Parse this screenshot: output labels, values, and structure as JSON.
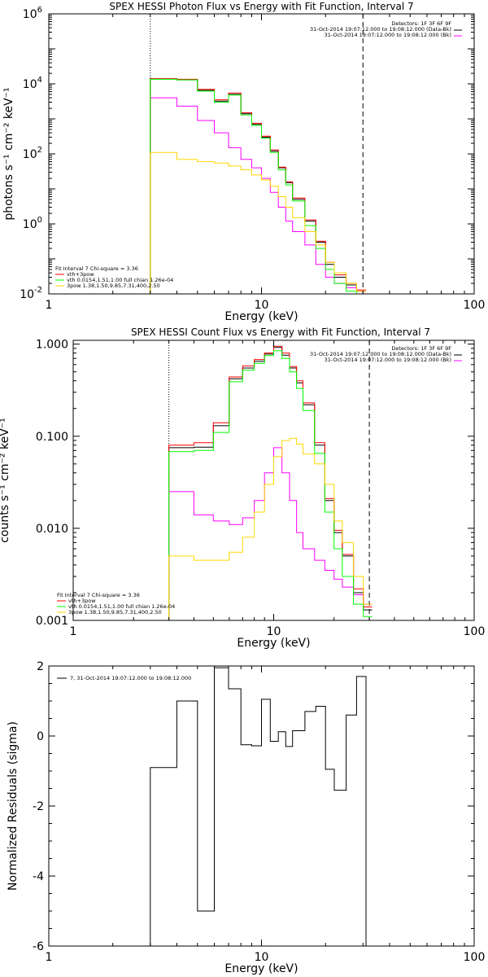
{
  "chart_data": [
    {
      "type": "line",
      "title": "SPEX HESSI Photon Flux vs Energy with Fit Function, Interval 7",
      "xlabel": "Energy (keV)",
      "ylabel": "photons s⁻¹ cm⁻² keV⁻¹",
      "x_scale": "log",
      "y_scale": "log",
      "xlim": [
        1,
        100
      ],
      "ylim": [
        0.01,
        1000000
      ],
      "x_ticks": [
        "1",
        "10",
        "100"
      ],
      "y_ticks": [
        "10",
        "10",
        "10",
        "10",
        "10"
      ],
      "y_tick_exps": [
        "-2",
        "0",
        "2",
        "4",
        "6"
      ],
      "legend_header": [
        "Detectors: 1F 3F 6F 9F",
        "31-Oct-2014 19:07:12.000 to 19:08:12.000 (Data-Bk)",
        "31-Oct-2014 19:07:12.000 to 19:08:12.000 (Bk)"
      ],
      "fit_labels": [
        "Fit Interval 7   Chi-square = 3.36",
        "vth+3pow",
        "vth 0.0154,1.51,1.00  full chian 1.26e-04",
        "3pow 1.38,1.50,9.85,7.31,400,2.50"
      ],
      "colors": {
        "data": "#000000",
        "bk": "#ff00ff",
        "total": "#ff0000",
        "vth": "#00ff00",
        "pow": "#ffd700"
      },
      "edges": [
        3,
        4,
        5,
        6,
        7,
        8,
        9,
        10,
        11,
        12,
        13,
        14,
        16,
        18,
        20,
        22,
        25,
        28,
        31
      ],
      "series": [
        {
          "name": "31-Oct-2014 19:07:12.000 to 19:08:12.000 (Data-Bk)",
          "values": [
            14000,
            13000,
            6500,
            3200,
            5000,
            1400,
            700,
            300,
            120,
            40,
            15,
            5,
            1.2,
            0.3,
            0.07,
            0.03,
            0.018,
            0.012
          ]
        },
        {
          "name": "31-Oct-2014 19:07:12.000 to 19:08:12.000 (Bk)",
          "values": [
            4000,
            2300,
            900,
            400,
            150,
            70,
            40,
            20,
            8,
            3,
            1.2,
            0.6,
            0.25,
            0.07,
            0.03,
            0.02,
            0.015,
            0.012
          ]
        },
        {
          "name": "vth+3pow",
          "values": [
            14000,
            13500,
            7000,
            3500,
            5500,
            1500,
            750,
            320,
            130,
            42,
            16,
            5.5,
            1.3,
            0.32,
            0.08,
            0.035,
            0.02,
            0.013
          ]
        },
        {
          "name": "vth",
          "values": [
            13500,
            13000,
            6200,
            3000,
            4800,
            1300,
            650,
            280,
            110,
            35,
            13,
            4.5,
            0.9,
            0.2,
            0.05,
            0.02,
            0.012,
            0.01
          ]
        },
        {
          "name": "3pow",
          "values": [
            110,
            70,
            60,
            55,
            45,
            35,
            25,
            18,
            12,
            6,
            3,
            1.5,
            0.6,
            0.25,
            0.08,
            0.04,
            0.02,
            0.012
          ]
        }
      ],
      "vline_dotted": 3,
      "vline_dashed": 30
    },
    {
      "type": "line",
      "title": "SPEX HESSI Count Flux vs Energy with Fit Function, Interval 7",
      "xlabel": "Energy (keV)",
      "ylabel": "counts s⁻¹ cm⁻² keV⁻¹",
      "x_scale": "log",
      "y_scale": "log",
      "xlim": [
        1,
        100
      ],
      "ylim": [
        0.001,
        1.1
      ],
      "x_ticks": [
        "1",
        "10",
        "100"
      ],
      "y_ticks": [
        "0.001",
        "0.010",
        "0.100",
        "1.000"
      ],
      "legend_header": [
        "Detectors: 1F 3F 6F 9F",
        "31-Oct-2014 19:07:12.000 to 19:08:12.000 (Data-Bk)",
        "31-Oct-2014 19:07:12.000 to 19:08:12.000 (Bk)"
      ],
      "fit_labels": [
        "Fit Interval 7   Chi-square = 3.36",
        "vth+3pow",
        "vth 0.0154,1.51,1.00  full chian 1.26e-04",
        "3pow 1.38,1.50,9.85,7.31,400,2.50"
      ],
      "colors": {
        "data": "#000000",
        "bk": "#ff00ff",
        "total": "#ff0000",
        "vth": "#00ff00",
        "pow": "#ffd700"
      },
      "edges": [
        3,
        4,
        5,
        6,
        7,
        8,
        9,
        10,
        11,
        12,
        13,
        14,
        16,
        18,
        20,
        22,
        25,
        28,
        31
      ],
      "series": [
        {
          "name": "31-Oct-2014 19:07:12.000 to 19:08:12.000 (Data-Bk)",
          "values": [
            0.075,
            0.076,
            0.13,
            0.42,
            0.55,
            0.65,
            0.78,
            0.92,
            0.76,
            0.55,
            0.38,
            0.22,
            0.08,
            0.02,
            0.009,
            0.005,
            0.002,
            0.0013
          ]
        },
        {
          "name": "31-Oct-2014 19:07:12.000 to 19:08:12.000 (Bk)",
          "values": [
            0.025,
            0.014,
            0.012,
            0.011,
            0.013,
            0.02,
            0.04,
            0.075,
            0.04,
            0.02,
            0.009,
            0.006,
            0.0045,
            0.0035,
            0.0028,
            0.0023,
            0.0019,
            0.0015
          ]
        },
        {
          "name": "vth+3pow",
          "values": [
            0.08,
            0.085,
            0.14,
            0.44,
            0.58,
            0.68,
            0.8,
            0.95,
            0.8,
            0.57,
            0.4,
            0.23,
            0.085,
            0.021,
            0.0095,
            0.0052,
            0.0022,
            0.0014
          ]
        },
        {
          "name": "vth",
          "values": [
            0.068,
            0.07,
            0.11,
            0.39,
            0.52,
            0.62,
            0.75,
            0.85,
            0.7,
            0.5,
            0.33,
            0.19,
            0.065,
            0.015,
            0.006,
            0.003,
            0.0015,
            0.0011
          ]
        },
        {
          "name": "3pow",
          "values": [
            0.005,
            0.0045,
            0.0045,
            0.0055,
            0.008,
            0.015,
            0.03,
            0.06,
            0.09,
            0.095,
            0.082,
            0.064,
            0.05,
            0.03,
            0.012,
            0.007,
            0.003,
            0.0015
          ]
        }
      ],
      "vline_dotted": 3,
      "vline_dashed": 30
    },
    {
      "type": "line",
      "title": "",
      "xlabel": "Energy (keV)",
      "ylabel": "Normalized Residuals (sigma)",
      "x_scale": "log",
      "y_scale": "linear",
      "xlim": [
        1,
        100
      ],
      "ylim": [
        -6,
        2
      ],
      "x_ticks": [
        "1",
        "10",
        "100"
      ],
      "y_ticks": [
        "-6",
        "-4",
        "-2",
        "0",
        "2"
      ],
      "legend": "7, 31-Oct-2014 19:07:12.000 to 19:08:12.000",
      "edges": [
        3,
        4,
        5,
        6,
        7,
        8,
        9,
        10,
        11,
        12,
        13,
        14,
        16,
        18,
        20,
        22,
        25,
        28,
        31
      ],
      "values": [
        -0.9,
        1.0,
        -5.0,
        1.95,
        1.35,
        -0.25,
        -0.28,
        1.05,
        -0.15,
        0.12,
        -0.3,
        0.15,
        0.7,
        0.85,
        -0.95,
        -1.55,
        0.6,
        1.7
      ]
    }
  ]
}
